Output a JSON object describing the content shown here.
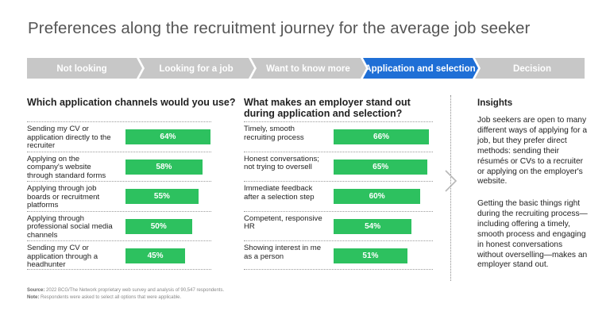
{
  "title": "Preferences along the recruitment journey for the average job seeker",
  "journey_steps": [
    {
      "label": "Not looking",
      "active": false
    },
    {
      "label": "Looking for a job",
      "active": false
    },
    {
      "label": "Want to know more",
      "active": false
    },
    {
      "label": "Application and selection",
      "active": true
    },
    {
      "label": "Decision",
      "active": false
    }
  ],
  "colors": {
    "bar": "#2dc15f",
    "active_step": "#1f6fd6",
    "inactive_step": "#c7c7c7",
    "title": "#555555"
  },
  "chart_data": [
    {
      "type": "bar",
      "orientation": "horizontal",
      "title": "Which application channels would you use?",
      "xlim": [
        0,
        100
      ],
      "unit": "%",
      "categories": [
        "Sending my CV or application directly to the recruiter",
        "Applying on the company's website through standard forms",
        "Applying through job boards or recruitment platforms",
        "Applying through professional social media channels",
        "Sending my CV or application through a headhunter"
      ],
      "values": [
        64,
        58,
        55,
        50,
        45
      ],
      "data_labels": [
        "64%",
        "58%",
        "55%",
        "50%",
        "45%"
      ]
    },
    {
      "type": "bar",
      "orientation": "horizontal",
      "title": "What makes an employer stand out during application and selection?",
      "xlim": [
        0,
        100
      ],
      "unit": "%",
      "categories": [
        "Timely, smooth recruiting process",
        "Honest conversations; not trying to oversell",
        "Immediate feedback after a selection step",
        "Competent, responsive HR",
        "Showing interest in me as a person"
      ],
      "values": [
        66,
        65,
        60,
        54,
        51
      ],
      "data_labels": [
        "66%",
        "65%",
        "60%",
        "54%",
        "51%"
      ]
    }
  ],
  "insights": {
    "heading": "Insights",
    "paragraphs": [
      "Job seekers are open to many different ways of applying for a job, but they prefer direct methods: sending their résumés or CVs to a recruiter or applying on the employer's website.",
      "Getting the basic things right during the recruiting process—including offering a timely, smooth process and engaging in honest conversations without overselling—makes an employer stand out."
    ]
  },
  "footnotes": {
    "source_label": "Source:",
    "source_text": "2022 BCG/The Network proprietary web survey and analysis of 90,547 respondents.",
    "note_label": "Note:",
    "note_text": "Respondents were asked to select all options that were applicable."
  }
}
